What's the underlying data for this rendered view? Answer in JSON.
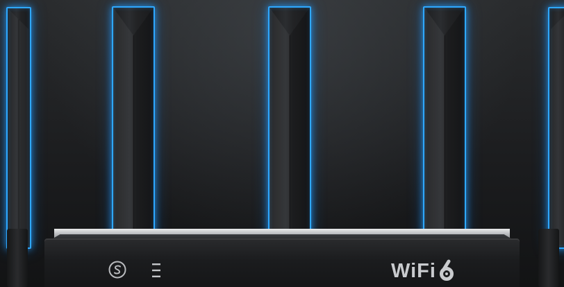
{
  "product": {
    "front_panel": {
      "brand_icon": "s-circle-logo-icon",
      "status_icon": "three-bar-led-icon",
      "wifi_label": "WiFi",
      "wifi_generation_icon": "stylized-6-icon"
    },
    "antenna_count": 5
  },
  "colors": {
    "background": "#1c1d1f",
    "antenna_glow": "#2ea8ff",
    "router_trim": "#c9cbce",
    "body": "#1b1c1e"
  }
}
